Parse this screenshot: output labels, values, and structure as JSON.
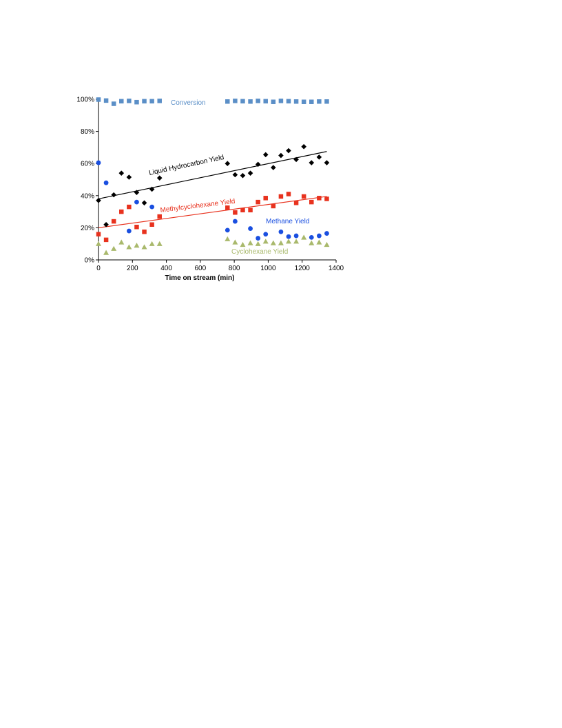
{
  "chart_data": {
    "type": "scatter",
    "title": "",
    "xlabel": "Time on stream (min)",
    "ylabel": "",
    "xlim": [
      0,
      1400
    ],
    "ylim": [
      0,
      100
    ],
    "x_ticks": [
      0,
      200,
      400,
      600,
      800,
      1000,
      1200,
      1400
    ],
    "y_ticks": [
      0,
      20,
      40,
      60,
      80,
      100
    ],
    "x_tick_labels": [
      "0",
      "200",
      "400",
      "600",
      "800",
      "1000",
      "1200",
      "1400"
    ],
    "y_tick_labels": [
      "0%",
      "20%",
      "40%",
      "60%",
      "80%",
      "100%"
    ],
    "grid": false,
    "annotations": {
      "conversion": "Conversion",
      "liquid": "Liquid Hydrocarbon Yield",
      "methylcyclohexane": "Methylcyclohexane Yield",
      "methane": "Methane Yield",
      "cyclohexane": "Cyclohexane Yield"
    },
    "series": [
      {
        "key": "conversion",
        "marker": "square",
        "color": "#5b8fc7",
        "points": [
          [
            0,
            99.8
          ],
          [
            45,
            99.2
          ],
          [
            90,
            97.2
          ],
          [
            135,
            98.8
          ],
          [
            180,
            99.0
          ],
          [
            225,
            98.2
          ],
          [
            270,
            98.8
          ],
          [
            315,
            98.8
          ],
          [
            360,
            99.0
          ],
          [
            760,
            98.6
          ],
          [
            805,
            99.0
          ],
          [
            850,
            98.8
          ],
          [
            895,
            98.6
          ],
          [
            940,
            99.0
          ],
          [
            985,
            98.8
          ],
          [
            1030,
            98.4
          ],
          [
            1075,
            99.0
          ],
          [
            1120,
            98.8
          ],
          [
            1165,
            98.6
          ],
          [
            1210,
            98.4
          ],
          [
            1255,
            98.4
          ],
          [
            1300,
            98.6
          ],
          [
            1345,
            98.6
          ]
        ]
      },
      {
        "key": "liquid",
        "marker": "diamond",
        "color": "#000000",
        "points": [
          [
            0,
            37
          ],
          [
            45,
            22
          ],
          [
            90,
            40.5
          ],
          [
            135,
            54
          ],
          [
            180,
            51.5
          ],
          [
            225,
            42
          ],
          [
            270,
            35.5
          ],
          [
            315,
            44
          ],
          [
            360,
            51
          ],
          [
            760,
            60
          ],
          [
            805,
            53
          ],
          [
            850,
            52.5
          ],
          [
            895,
            54
          ],
          [
            940,
            59.5
          ],
          [
            985,
            65.5
          ],
          [
            1030,
            57.5
          ],
          [
            1075,
            65
          ],
          [
            1120,
            68
          ],
          [
            1165,
            62.5
          ],
          [
            1210,
            70.5
          ],
          [
            1255,
            60.5
          ],
          [
            1300,
            64
          ],
          [
            1345,
            60.5
          ]
        ]
      },
      {
        "key": "methylcyclohexane",
        "marker": "square",
        "color": "#e8321e",
        "points": [
          [
            0,
            16
          ],
          [
            45,
            12.5
          ],
          [
            90,
            24
          ],
          [
            135,
            30
          ],
          [
            180,
            33
          ],
          [
            225,
            20.5
          ],
          [
            270,
            17.5
          ],
          [
            315,
            22
          ],
          [
            360,
            27
          ],
          [
            760,
            32.5
          ],
          [
            805,
            29.5
          ],
          [
            850,
            31
          ],
          [
            895,
            31
          ],
          [
            940,
            36
          ],
          [
            985,
            38.5
          ],
          [
            1030,
            33.5
          ],
          [
            1075,
            39.5
          ],
          [
            1120,
            41
          ],
          [
            1165,
            35.5
          ],
          [
            1210,
            39.5
          ],
          [
            1255,
            36
          ],
          [
            1300,
            38.5
          ],
          [
            1345,
            38
          ]
        ]
      },
      {
        "key": "methane",
        "marker": "circle",
        "color": "#1a4fe0",
        "points": [
          [
            0,
            60.5
          ],
          [
            45,
            48
          ],
          [
            180,
            18
          ],
          [
            225,
            36
          ],
          [
            315,
            33
          ],
          [
            760,
            18.5
          ],
          [
            805,
            24
          ],
          [
            895,
            19.5
          ],
          [
            940,
            13.5
          ],
          [
            985,
            16
          ],
          [
            1075,
            17.5
          ],
          [
            1120,
            14.5
          ],
          [
            1165,
            15
          ],
          [
            1255,
            14
          ],
          [
            1300,
            15
          ],
          [
            1345,
            16.5
          ]
        ]
      },
      {
        "key": "cyclohexane",
        "marker": "triangle",
        "color": "#a9b96c",
        "points": [
          [
            0,
            10
          ],
          [
            45,
            4.5
          ],
          [
            90,
            7
          ],
          [
            135,
            11
          ],
          [
            180,
            8
          ],
          [
            225,
            9
          ],
          [
            270,
            8
          ],
          [
            315,
            10
          ],
          [
            360,
            10
          ],
          [
            760,
            13
          ],
          [
            805,
            11
          ],
          [
            850,
            9.5
          ],
          [
            895,
            10.5
          ],
          [
            940,
            10
          ],
          [
            985,
            11.5
          ],
          [
            1030,
            10.5
          ],
          [
            1075,
            10.5
          ],
          [
            1120,
            11.5
          ],
          [
            1165,
            11.5
          ],
          [
            1210,
            14
          ],
          [
            1255,
            10.5
          ],
          [
            1300,
            11
          ],
          [
            1345,
            9.5
          ]
        ]
      }
    ],
    "trendlines": [
      {
        "series": "liquid",
        "color": "#000000",
        "from": [
          0,
          38
        ],
        "to": [
          1345,
          67.5
        ]
      },
      {
        "series": "methylcyclohexane",
        "color": "#e8321e",
        "from": [
          0,
          20
        ],
        "to": [
          1345,
          39.5
        ]
      }
    ]
  }
}
